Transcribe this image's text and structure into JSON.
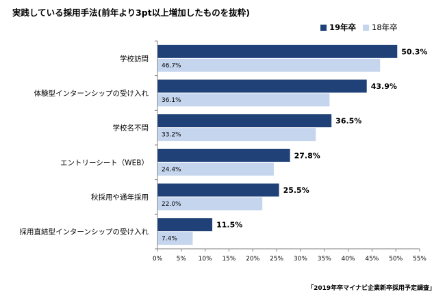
{
  "title": "実践している採用手法(前年より3pt以上増加したものを抜粋)",
  "source": "「2019年卒マイナビ企業新卒採用予定調査」",
  "legend": {
    "s19": "19年卒",
    "s18": "18年卒"
  },
  "colors": {
    "s19": "#1f4178",
    "s18": "#c5d5ee",
    "axis": "#7f7f7f"
  },
  "chart_data": {
    "type": "bar",
    "orientation": "horizontal",
    "title": "実践している採用手法(前年より3pt以上増加したものを抜粋)",
    "categories": [
      "学校訪問",
      "体験型インターンシップの受け入れ",
      "学校名不問",
      "エントリーシート（WEB）",
      "秋採用や通年採用",
      "採用直結型インターンシップの受け入れ"
    ],
    "series": [
      {
        "name": "19年卒",
        "values": [
          50.3,
          43.9,
          36.5,
          27.8,
          25.5,
          11.5
        ],
        "labels": [
          "50.3%",
          "43.9%",
          "36.5%",
          "27.8%",
          "25.5%",
          "11.5%"
        ]
      },
      {
        "name": "18年卒",
        "values": [
          46.7,
          36.1,
          33.2,
          24.4,
          22.0,
          7.4
        ],
        "labels": [
          "46.7%",
          "36.1%",
          "33.2%",
          "24.4%",
          "22.0%",
          "7.4%"
        ]
      }
    ],
    "xlim": [
      0,
      55
    ],
    "xticks": [
      "0%",
      "5%",
      "10%",
      "15%",
      "20%",
      "25%",
      "30%",
      "35%",
      "40%",
      "45%",
      "50%",
      "55%"
    ],
    "xlabel": "",
    "ylabel": "",
    "grid": false,
    "legend_position": "top-right"
  }
}
